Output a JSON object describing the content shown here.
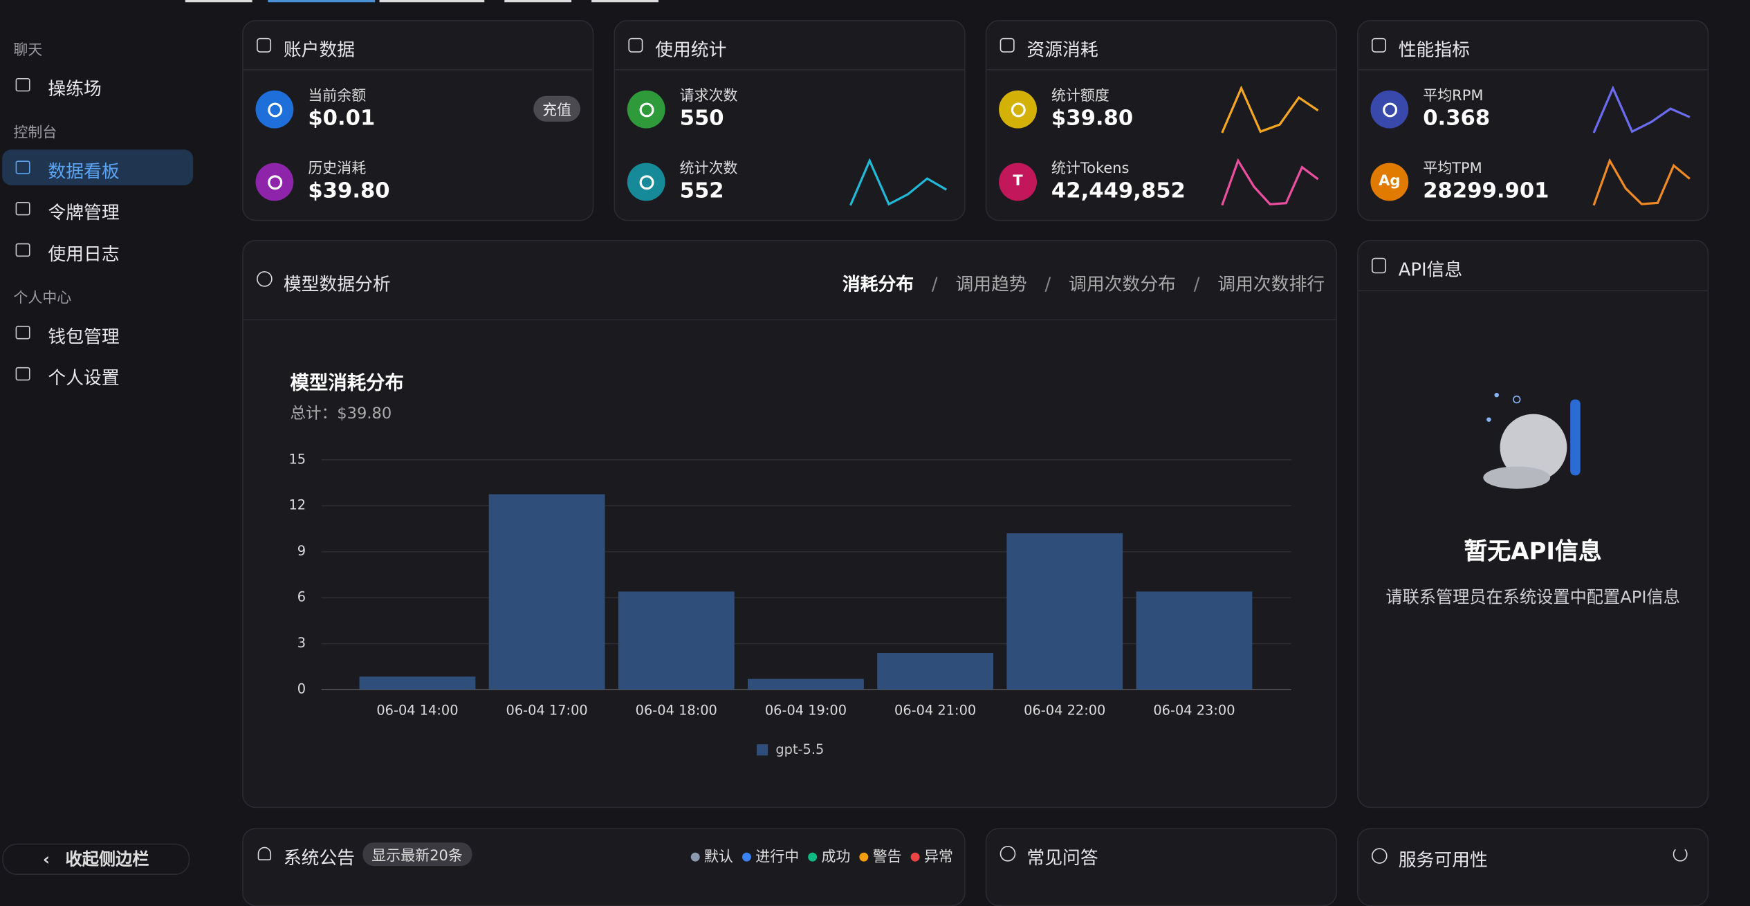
{
  "sidebar": {
    "groups": [
      {
        "title": "聊天",
        "items": [
          "操练场"
        ]
      },
      {
        "title": "控制台",
        "items": [
          "数据看板",
          "令牌管理",
          "使用日志"
        ]
      },
      {
        "title": "个人中心",
        "items": [
          "钱包管理",
          "个人设置"
        ]
      }
    ],
    "collapse": "收起侧边栏"
  },
  "cards": [
    {
      "title": "账户数据",
      "items": [
        {
          "label": "当前余额",
          "value": "$0.01",
          "action": "充值",
          "icon_color": "#1e6fd9"
        },
        {
          "label": "历史消耗",
          "value": "$39.80",
          "icon_color": "#8e24aa"
        }
      ]
    },
    {
      "title": "使用统计",
      "items": [
        {
          "label": "请求次数",
          "value": "550",
          "icon_color": "#2e9a3a"
        },
        {
          "label": "统计次数",
          "value": "552",
          "icon_color": "#168a99",
          "trend_color": "#22b8d8",
          "trend": [
            0,
            40,
            1,
            10,
            24,
            14
          ]
        }
      ]
    },
    {
      "title": "资源消耗",
      "items": [
        {
          "label": "统计额度",
          "value": "$39.80",
          "icon_color": "#d4b106",
          "trend_color": "#f5a623",
          "trend": [
            0,
            38,
            1,
            7,
            30,
            19
          ]
        },
        {
          "label": "统计Tokens",
          "value": "42,449,852",
          "icon_color": "#c2185b",
          "icon_text": "T",
          "trend_color": "#ec4fa0",
          "trend": [
            0,
            41,
            17,
            1,
            2,
            35,
            24
          ]
        }
      ]
    },
    {
      "title": "性能指标",
      "items": [
        {
          "label": "平均RPM",
          "value": "0.368",
          "icon_color": "#3949ab",
          "trend_color": "#6b6cf0",
          "trend": [
            0,
            37,
            1,
            9,
            20,
            13
          ]
        },
        {
          "label": "平均TPM",
          "value": "28299.901",
          "icon_color": "#e07b00",
          "icon_text": "Ag",
          "trend_color": "#f08a24",
          "trend": [
            0,
            37,
            14,
            1,
            2,
            33,
            22
          ]
        }
      ]
    }
  ],
  "analysis": {
    "title": "模型数据分析",
    "tabs": [
      "消耗分布",
      "调用趋势",
      "调用次数分布",
      "调用次数排行"
    ]
  },
  "chart_data": {
    "type": "bar",
    "title": "模型消耗分布",
    "subtitle": "总计：$39.80",
    "categories": [
      "06-04 14:00",
      "06-04 17:00",
      "06-04 18:00",
      "06-04 19:00",
      "06-04 21:00",
      "06-04 22:00",
      "06-04 23:00"
    ],
    "series": [
      {
        "name": "gpt-5.5",
        "color": "#2f4e7a",
        "values": [
          0.85,
          12.75,
          6.4,
          0.7,
          2.4,
          10.2,
          6.4
        ]
      }
    ],
    "ylim": [
      0,
      15
    ],
    "yticks": [
      0,
      3,
      6,
      9,
      12,
      15
    ],
    "grid": true
  },
  "api": {
    "title": "API信息",
    "empty_title": "暂无API信息",
    "empty_text": "请联系管理员在系统设置中配置API信息"
  },
  "notice": {
    "title": "系统公告",
    "badge": "显示最新20条",
    "legend": [
      {
        "label": "默认",
        "color": "#8a9bb0"
      },
      {
        "label": "进行中",
        "color": "#3b82f6"
      },
      {
        "label": "成功",
        "color": "#10b981"
      },
      {
        "label": "警告",
        "color": "#f59e0b"
      },
      {
        "label": "异常",
        "color": "#ef4444"
      }
    ]
  },
  "faq": {
    "title": "常见问答"
  },
  "uptime": {
    "title": "服务可用性"
  }
}
